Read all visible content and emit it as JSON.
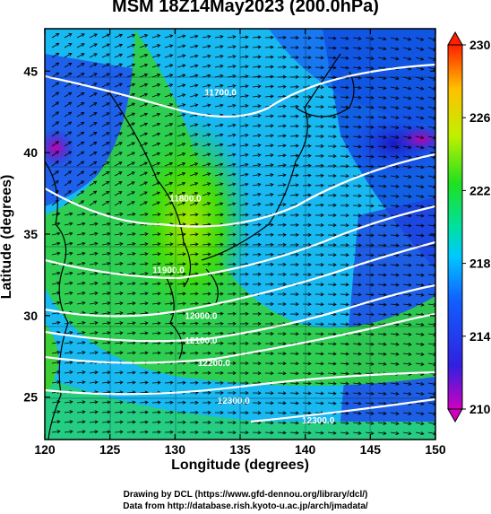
{
  "title": "MSM 18Z14May2023 (200.0hPa)",
  "axes": {
    "xlabel": "Longitude (degrees)",
    "ylabel": "Latitude  (degrees)",
    "xticks": [
      "120",
      "125",
      "130",
      "135",
      "140",
      "145",
      "150"
    ],
    "yticks": [
      "25",
      "30",
      "35",
      "40",
      "45"
    ],
    "xlim": [
      120,
      150
    ],
    "ylim": [
      22.4,
      47.6
    ]
  },
  "colorbar": {
    "ticks": [
      "210",
      "214",
      "218",
      "222",
      "226",
      "230"
    ],
    "min": 210,
    "max": 230
  },
  "contour_labels": [
    {
      "text": "11700.0",
      "lon": 133.5,
      "lat": 43.5
    },
    {
      "text": "11800.0",
      "lon": 130.8,
      "lat": 37.0
    },
    {
      "text": "11900.0",
      "lon": 129.5,
      "lat": 32.6
    },
    {
      "text": "12000.0",
      "lon": 132.0,
      "lat": 29.8
    },
    {
      "text": "12100.0",
      "lon": 132.0,
      "lat": 28.3
    },
    {
      "text": "12200.0",
      "lon": 133.0,
      "lat": 26.9
    },
    {
      "text": "12300.0",
      "lon": 134.5,
      "lat": 24.6
    },
    {
      "text": "12300.0",
      "lon": 141.0,
      "lat": 23.4
    }
  ],
  "credits": {
    "line1": "Drawing by DCL (https://www.gfd-dennou.org/library/dcl/)",
    "line2": "Data from http://database.rish.kyoto-u.ac.jp/arch/jmadata/"
  },
  "colors": {
    "low": "#e0009a",
    "mid": "#20e020",
    "high": "#ff3000"
  }
}
